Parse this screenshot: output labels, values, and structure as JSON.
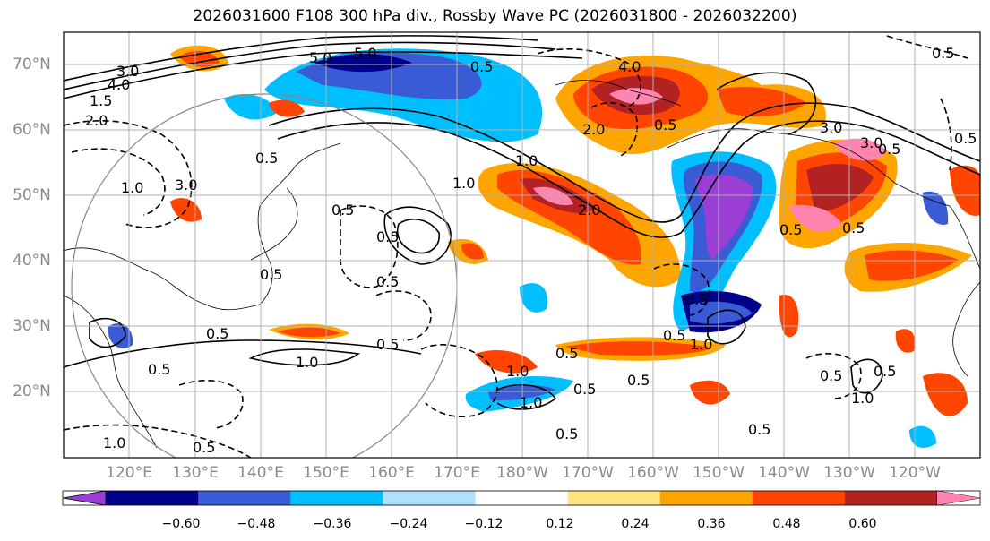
{
  "title": "2026031600 F108 300 hPa div., Rossby Wave PC (2026031800 - 2026032200)",
  "lat_labels": [
    "70°N",
    "60°N",
    "50°N",
    "40°N",
    "30°N",
    "20°N"
  ],
  "lon_labels": [
    "120°E",
    "130°E",
    "140°E",
    "150°E",
    "160°E",
    "170°E",
    "180°W",
    "170°W",
    "160°W",
    "150°W",
    "140°W",
    "130°W",
    "120°W"
  ],
  "colorbar": {
    "ticks": [
      "−0.60",
      "−0.48",
      "−0.36",
      "−0.24",
      "−0.12",
      "0.12",
      "0.24",
      "0.36",
      "0.48",
      "0.60"
    ],
    "colors": [
      "#9a3ed6",
      "#00008b",
      "#3a5bd6",
      "#00bfff",
      "#b0e0ff",
      "#ffffff",
      "#ffe680",
      "#ffa500",
      "#ff4500",
      "#b22222",
      "#ff85b0"
    ]
  },
  "contour_labels": [
    "3.0",
    "4.0",
    "5.0",
    "5.0",
    "0.5",
    "2.0",
    "3.0",
    "4.0",
    "2.0",
    "1.0",
    "1.0",
    "0.5",
    "0.5",
    "2.0",
    "1.0",
    "1.5",
    "0.5",
    "0.5",
    "3.0",
    "0.5",
    "0.5",
    "0.5",
    "0.5",
    "3.0",
    "0.5",
    "1.0",
    "0.5",
    "0.5",
    "0.5",
    "1.0",
    "0.5",
    "1.0",
    "0.5",
    "0.5",
    "0.5",
    "0.5",
    "1.0",
    "0.5",
    "1.0",
    "0.5",
    "0.5",
    "0.5",
    "1.0",
    "0.5",
    "0.5",
    "0.5"
  ]
}
